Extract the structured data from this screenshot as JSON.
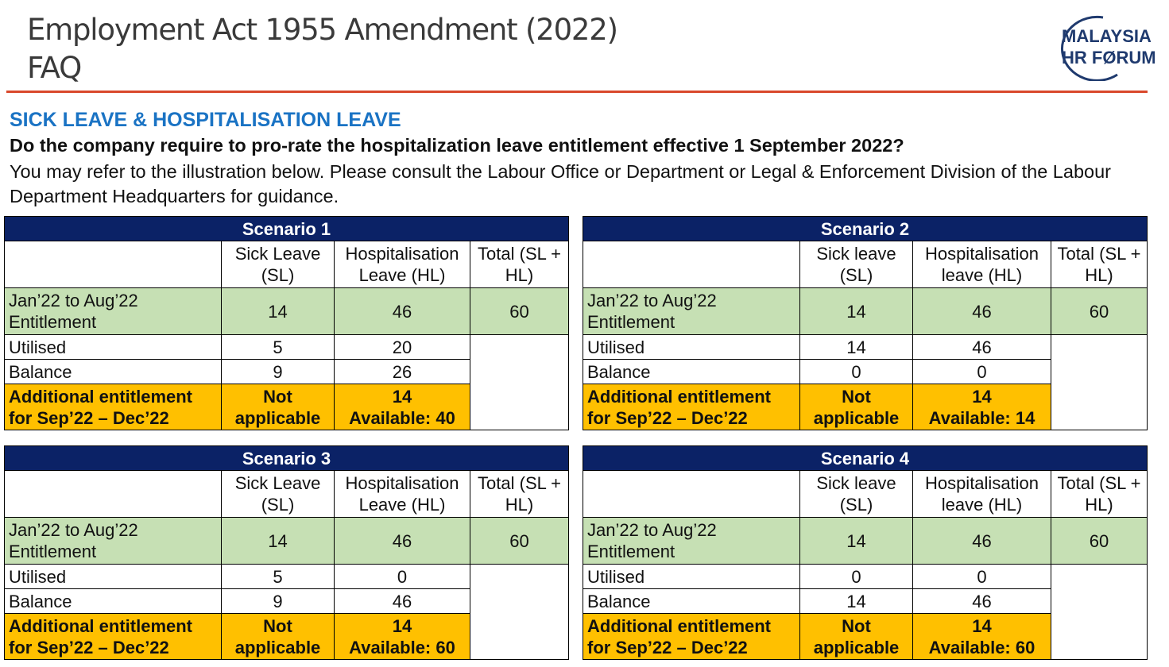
{
  "header": {
    "title_line1": "Employment Act 1955 Amendment (2022)",
    "title_line2": "FAQ",
    "logo_line1": "MALAYSIA",
    "logo_line2": "HR FØRUM",
    "logo_color": "#1f3a6e",
    "rule_color": "#d9482b"
  },
  "section_title": "SICK LEAVE & HOSPITALISATION LEAVE",
  "question": "Do the company require to pro-rate the hospitalization leave entitlement effective 1 September 2022?",
  "answer": "You may refer to the illustration below. Please consult the Labour Office or Department or Legal & Enforcement Division of the Labour Department Headquarters for guidance.",
  "scenarios": [
    {
      "title": "Scenario 1",
      "col1": "Sick Leave (SL)",
      "col2": "Hospitalisation Leave (HL)",
      "col3": "Total (SL + HL)",
      "entitlement_label": "Jan’22 to Aug’22 Entitlement",
      "ent_sl": "14",
      "ent_hl": "46",
      "ent_total": "60",
      "utilised_label": "Utilised",
      "util_sl": "5",
      "util_hl": "20",
      "balance_label": "Balance",
      "bal_sl": "9",
      "bal_hl": "26",
      "add_label_1": "Additional entitlement",
      "add_label_2": "for Sep’22 – Dec’22",
      "add_sl_1": "Not",
      "add_sl_2": "applicable",
      "add_hl_1": "14",
      "add_hl_2": "Available: 40"
    },
    {
      "title": "Scenario 2",
      "col1": "Sick leave (SL)",
      "col2": "Hospitalisation leave (HL)",
      "col3": "Total (SL + HL)",
      "entitlement_label": "Jan’22 to Aug’22 Entitlement",
      "ent_sl": "14",
      "ent_hl": "46",
      "ent_total": "60",
      "utilised_label": "Utilised",
      "util_sl": "14",
      "util_hl": "46",
      "balance_label": "Balance",
      "bal_sl": "0",
      "bal_hl": "0",
      "add_label_1": "Additional entitlement",
      "add_label_2": "for Sep’22 – Dec’22",
      "add_sl_1": "Not",
      "add_sl_2": "applicable",
      "add_hl_1": "14",
      "add_hl_2": "Available: 14"
    },
    {
      "title": "Scenario 3",
      "col1": "Sick Leave (SL)",
      "col2": "Hospitalisation Leave (HL)",
      "col3": "Total (SL + HL)",
      "entitlement_label": "Jan’22 to Aug’22 Entitlement",
      "ent_sl": "14",
      "ent_hl": "46",
      "ent_total": "60",
      "utilised_label": "Utilised",
      "util_sl": "5",
      "util_hl": "0",
      "balance_label": "Balance",
      "bal_sl": "9",
      "bal_hl": "46",
      "add_label_1": "Additional entitlement",
      "add_label_2": "for Sep’22 – Dec’22",
      "add_sl_1": "Not",
      "add_sl_2": "applicable",
      "add_hl_1": "14",
      "add_hl_2": "Available: 60"
    },
    {
      "title": "Scenario 4",
      "col1": "Sick leave (SL)",
      "col2": "Hospitalisation leave (HL)",
      "col3": "Total (SL + HL)",
      "entitlement_label": "Jan’22 to Aug’22 Entitlement",
      "ent_sl": "14",
      "ent_hl": "46",
      "ent_total": "60",
      "utilised_label": "Utilised",
      "util_sl": "0",
      "util_hl": "0",
      "balance_label": "Balance",
      "bal_sl": "14",
      "bal_hl": "46",
      "add_label_1": "Additional entitlement",
      "add_label_2": "for Sep’22 – Dec’22",
      "add_sl_1": "Not",
      "add_sl_2": "applicable",
      "add_hl_1": "14",
      "add_hl_2": "Available: 60"
    }
  ]
}
